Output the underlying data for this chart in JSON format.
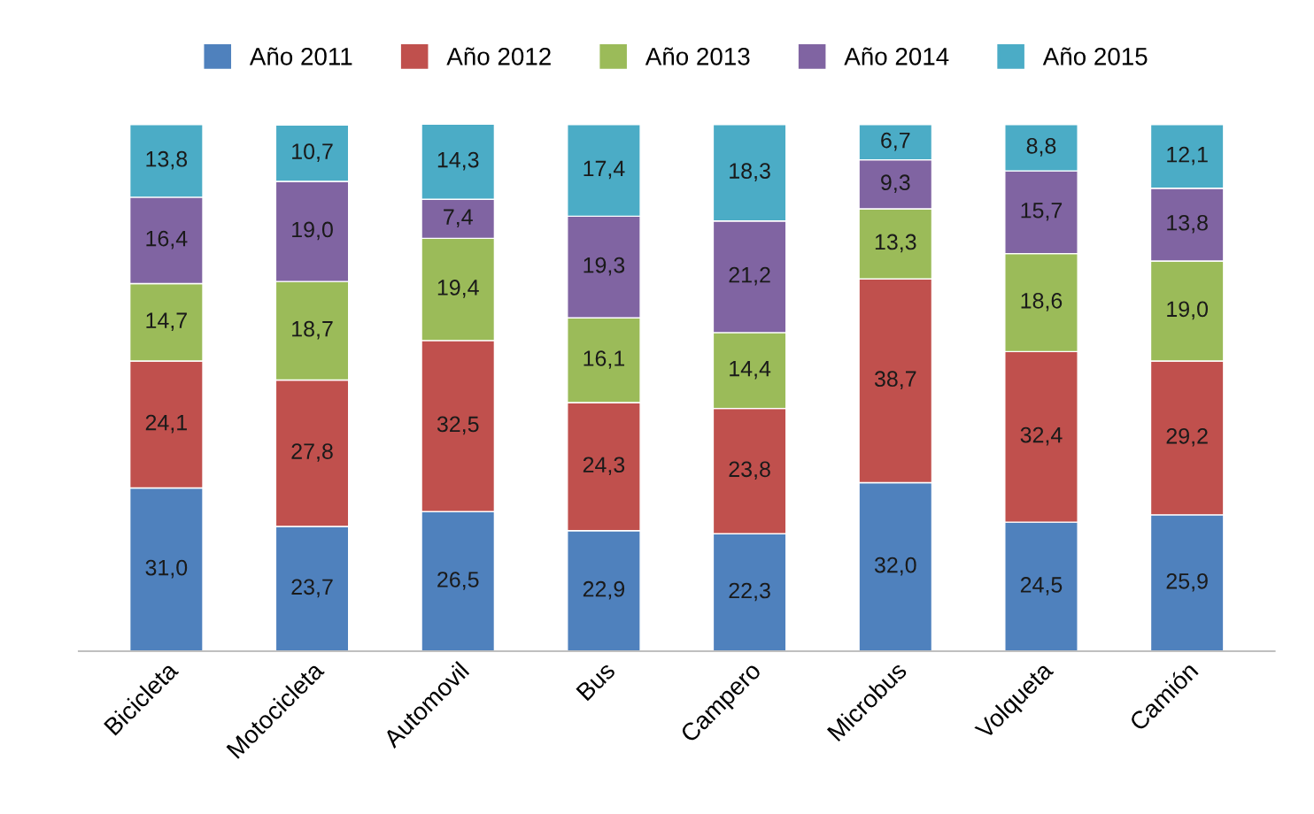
{
  "chart_data": {
    "type": "bar",
    "stacked": true,
    "legend": "top",
    "grid": false,
    "tick_labels": "x",
    "categories": [
      "Bicicleta",
      "Motocicleta",
      "Automovil",
      "Bus",
      "Campero",
      "Microbus",
      "Volqueta",
      "Camión"
    ],
    "series": [
      {
        "name": "Año 2011",
        "color": "#4f81bd",
        "values": [
          31.0,
          23.7,
          26.5,
          22.9,
          22.3,
          32.0,
          24.5,
          25.9
        ],
        "value_labels": [
          "31,0",
          "23,7",
          "26,5",
          "22,9",
          "22,3",
          "32,0",
          "24,5",
          "25,9"
        ]
      },
      {
        "name": "Año 2012",
        "color": "#c0504d",
        "values": [
          24.1,
          27.8,
          32.5,
          24.3,
          23.8,
          38.7,
          32.4,
          29.2
        ],
        "value_labels": [
          "24,1",
          "27,8",
          "32,5",
          "24,3",
          "23,8",
          "38,7",
          "32,4",
          "29,2"
        ]
      },
      {
        "name": "Año 2013",
        "color": "#9bbb59",
        "values": [
          14.7,
          18.7,
          19.4,
          16.1,
          14.4,
          13.3,
          18.6,
          19.0
        ],
        "value_labels": [
          "14,7",
          "18,7",
          "19,4",
          "16,1",
          "14,4",
          "13,3",
          "18,6",
          "19,0"
        ]
      },
      {
        "name": "Año 2014",
        "color": "#8064a2",
        "values": [
          16.4,
          19.0,
          7.4,
          19.3,
          21.2,
          9.3,
          15.7,
          13.8
        ],
        "value_labels": [
          "16,4",
          "19,0",
          "7,4",
          "19,3",
          "21,2",
          "9,3",
          "15,7",
          "13,8"
        ]
      },
      {
        "name": "Año 2015",
        "color": "#4bacc6",
        "values": [
          13.8,
          10.7,
          14.3,
          17.4,
          18.3,
          6.7,
          8.8,
          12.1
        ],
        "value_labels": [
          "13,8",
          "10,7",
          "14,3",
          "17,4",
          "18,3",
          "6,7",
          "8,8",
          "12,1"
        ]
      }
    ]
  }
}
